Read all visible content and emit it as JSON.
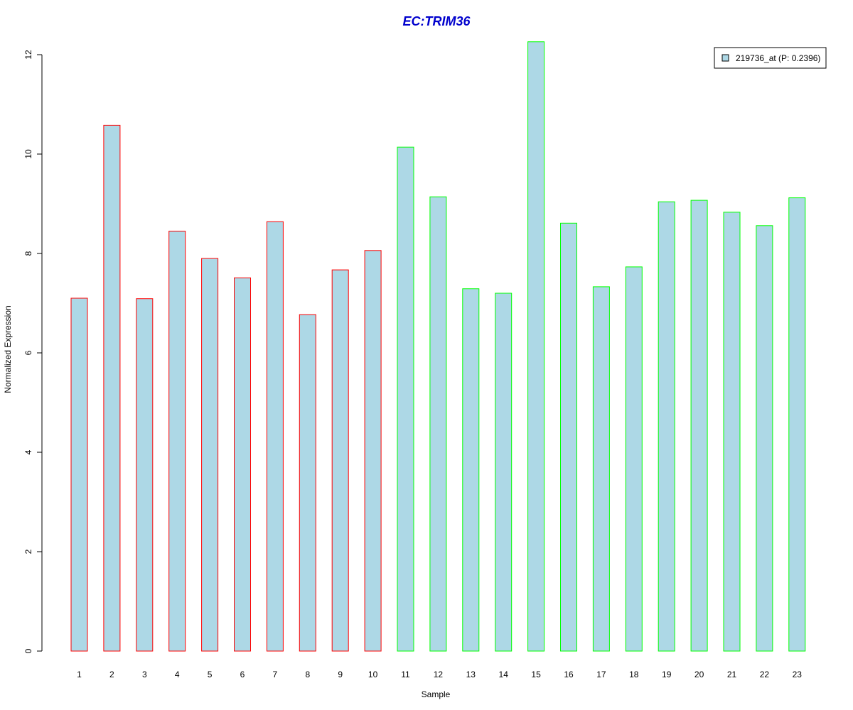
{
  "chart_data": {
    "type": "bar",
    "title": "EC:TRIM36",
    "xlabel": "Sample",
    "ylabel": "Normalized Expression",
    "ylim": [
      0,
      12.2
    ],
    "yticks": [
      0,
      2,
      4,
      6,
      8,
      10,
      12
    ],
    "grid": false,
    "legend_position": "top-right",
    "categories": [
      "1",
      "2",
      "3",
      "4",
      "5",
      "6",
      "7",
      "8",
      "9",
      "10",
      "11",
      "12",
      "13",
      "14",
      "15",
      "16",
      "17",
      "18",
      "19",
      "20",
      "21",
      "22",
      "23"
    ],
    "series": [
      {
        "name": "219736_at (P: 0.2396)",
        "values": [
          7.1,
          10.58,
          7.09,
          8.45,
          7.9,
          7.51,
          8.64,
          6.77,
          7.67,
          8.06,
          10.14,
          9.14,
          7.29,
          7.2,
          12.26,
          8.61,
          7.33,
          7.73,
          9.04,
          9.07,
          8.83,
          8.56,
          9.12
        ],
        "groups": [
          "A",
          "A",
          "A",
          "A",
          "A",
          "A",
          "A",
          "A",
          "A",
          "A",
          "B",
          "B",
          "B",
          "B",
          "B",
          "B",
          "B",
          "B",
          "B",
          "B",
          "B",
          "B",
          "B"
        ]
      }
    ],
    "colors": {
      "fill": "#add8e6",
      "group_A_border": "#ff0000",
      "group_B_border": "#00ff00",
      "title": "#0000cd"
    }
  }
}
